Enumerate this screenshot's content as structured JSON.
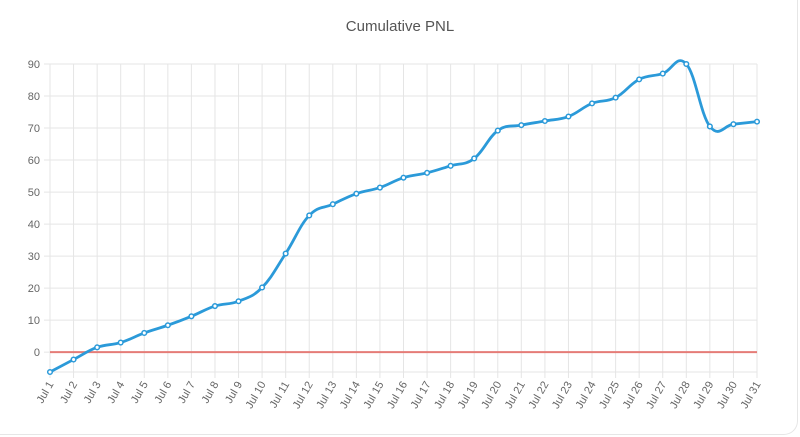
{
  "chart_data": {
    "type": "line",
    "title": "Cumulative PNL",
    "xlabel": "",
    "ylabel": "",
    "categories": [
      "Jul 1",
      "Jul 2",
      "Jul 3",
      "Jul 4",
      "Jul 5",
      "Jul 6",
      "Jul 7",
      "Jul 8",
      "Jul 9",
      "Jul 10",
      "Jul 11",
      "Jul 12",
      "Jul 13",
      "Jul 14",
      "Jul 15",
      "Jul 16",
      "Jul 17",
      "Jul 18",
      "Jul 19",
      "Jul 20",
      "Jul 21",
      "Jul 22",
      "Jul 23",
      "Jul 24",
      "Jul 25",
      "Jul 26",
      "Jul 27",
      "Jul 28",
      "Jul 29",
      "Jul 30",
      "Jul 31"
    ],
    "series": [
      {
        "values": [
          -6.2,
          -2.3,
          1.5,
          3.0,
          6.0,
          8.4,
          11.2,
          14.4,
          15.9,
          20.2,
          30.8,
          42.7,
          46.2,
          49.5,
          51.4,
          54.5,
          56.0,
          58.2,
          60.5,
          69.2,
          70.9,
          72.2,
          73.6,
          77.7,
          79.5,
          85.2,
          87.0,
          90.0,
          70.5,
          71.2,
          72.0
        ]
      }
    ],
    "yticks": [
      0,
      10,
      20,
      30,
      40,
      50,
      60,
      70,
      80,
      90
    ],
    "ylim": [
      -6.2,
      90
    ],
    "grid": true,
    "legend": "none",
    "reference_line": {
      "y": 0
    },
    "colors": {
      "line": "#2b9ad9",
      "zero_line": "#e57c77",
      "grid": "#e5e5e5",
      "axis_text": "#666666",
      "title_text": "#555555"
    }
  }
}
